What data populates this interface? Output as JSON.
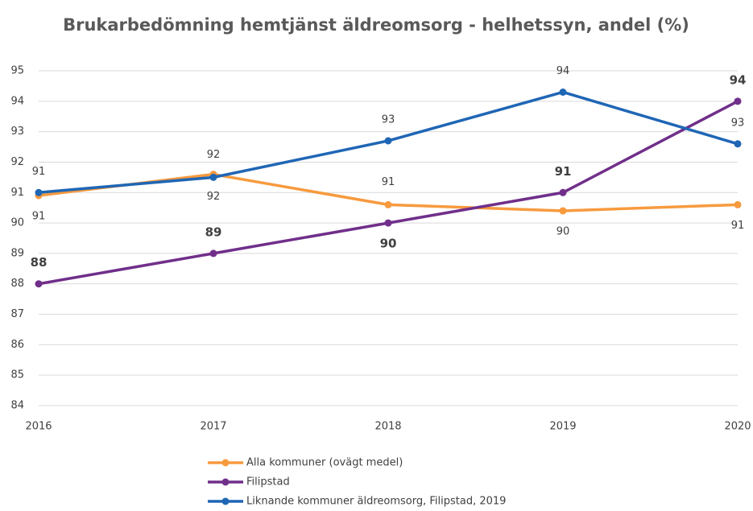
{
  "chart_data": {
    "type": "line",
    "title": "Brukarbedömning hemtjänst äldreomsorg -  helhetssyn, andel (%)",
    "categories": [
      "2016",
      "2017",
      "2018",
      "2019",
      "2020"
    ],
    "series": [
      {
        "name": "Alla kommuner (ovägt medel)",
        "color": "#f79a3e",
        "values": [
          90.9,
          91.6,
          90.6,
          90.4,
          90.6
        ],
        "value_labels": [
          "91",
          "92",
          "91",
          "90",
          "91"
        ]
      },
      {
        "name": "Filipstad",
        "color": "#702f8a",
        "values": [
          88,
          89,
          90,
          91,
          94
        ]
      },
      {
        "name": "Liknande kommuner äldreomsorg, Filipstad, 2019",
        "color": "#1f66b5",
        "values": [
          91.0,
          91.5,
          92.7,
          94.3,
          92.6
        ],
        "value_labels": [
          "91",
          "92",
          "93",
          "94",
          "93"
        ]
      }
    ],
    "ylim": [
      84,
      95
    ],
    "yticks": [
      84,
      85,
      86,
      87,
      88,
      89,
      90,
      91,
      92,
      93,
      94,
      95
    ],
    "grid": true
  }
}
